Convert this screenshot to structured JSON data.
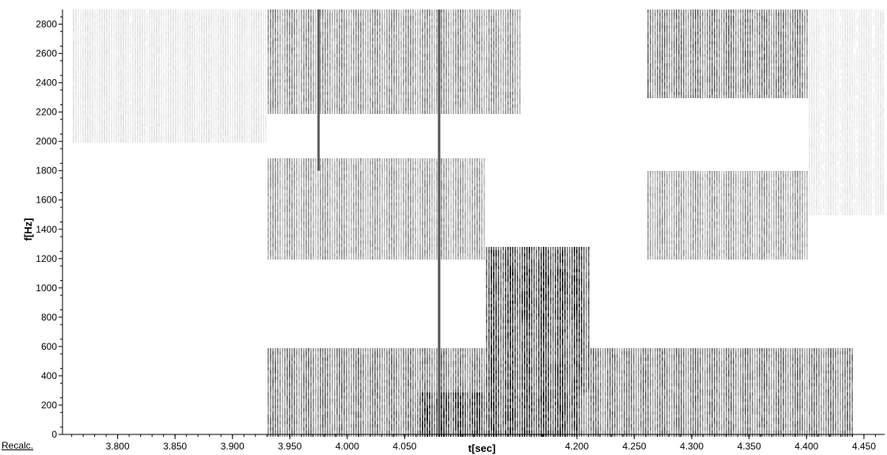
{
  "recalc_label": "Recalc.",
  "chart_data": {
    "type": "heatmap",
    "title": "",
    "xlabel": "t[sec]",
    "ylabel": "f[Hz]",
    "xlim": [
      3.752,
      4.468
    ],
    "ylim": [
      0,
      2900
    ],
    "x_ticks": [
      {
        "value": 3.8,
        "label": "3.800"
      },
      {
        "value": 3.85,
        "label": "3.850"
      },
      {
        "value": 3.9,
        "label": "3.900"
      },
      {
        "value": 3.95,
        "label": "3.950"
      },
      {
        "value": 4.0,
        "label": "4.000"
      },
      {
        "value": 4.05,
        "label": "4.050"
      },
      {
        "value": 4.2,
        "label": "4.200"
      },
      {
        "value": 4.25,
        "label": "4.250"
      },
      {
        "value": 4.3,
        "label": "4.300"
      },
      {
        "value": 4.35,
        "label": "4.350"
      },
      {
        "value": 4.4,
        "label": "4.400"
      },
      {
        "value": 4.45,
        "label": "4.450"
      }
    ],
    "y_ticks": [
      0,
      200,
      400,
      600,
      800,
      1000,
      1200,
      1400,
      1600,
      1800,
      2000,
      2200,
      2400,
      2600,
      2800
    ],
    "grid": false,
    "colormap": "grayscale (white = low energy, black = high energy)",
    "color_low": "#ffffff",
    "color_high": "#1a1a1a",
    "energy_regions": [
      {
        "t": [
          3.93,
          4.44
        ],
        "f": [
          0,
          600
        ],
        "intensity": 0.55
      },
      {
        "t": [
          4.06,
          4.2
        ],
        "f": [
          0,
          300
        ],
        "intensity": 0.85
      },
      {
        "t": [
          4.12,
          4.21
        ],
        "f": [
          300,
          1300
        ],
        "intensity": 0.8
      },
      {
        "t": [
          4.14,
          4.2
        ],
        "f": [
          800,
          1150
        ],
        "intensity": 0.9
      },
      {
        "t": [
          3.93,
          4.12
        ],
        "f": [
          1200,
          1900
        ],
        "intensity": 0.4
      },
      {
        "t": [
          4.26,
          4.4
        ],
        "f": [
          1200,
          1800
        ],
        "intensity": 0.4
      },
      {
        "t": [
          3.93,
          4.15
        ],
        "f": [
          2200,
          2900
        ],
        "intensity": 0.45
      },
      {
        "t": [
          4.26,
          4.4
        ],
        "f": [
          2300,
          2900
        ],
        "intensity": 0.55
      },
      {
        "t": [
          3.76,
          3.93
        ],
        "f": [
          2000,
          2900
        ],
        "intensity": 0.12
      },
      {
        "t": [
          4.4,
          4.468
        ],
        "f": [
          1500,
          2900
        ],
        "intensity": 0.1
      }
    ],
    "vertical_striations": [
      {
        "t": 3.975,
        "f": [
          1800,
          2900
        ],
        "intensity": 0.7
      },
      {
        "t": 4.08,
        "f": [
          0,
          2900
        ],
        "intensity": 0.75
      }
    ]
  }
}
